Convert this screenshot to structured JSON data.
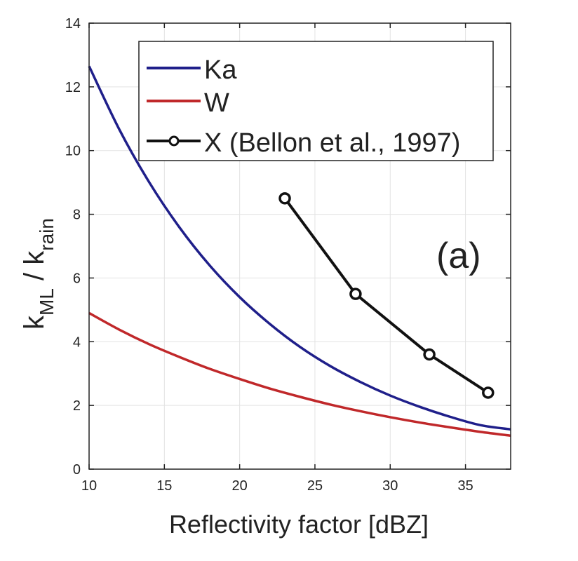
{
  "chart_data": {
    "type": "line",
    "title": "",
    "xlabel": "Reflectivity factor [dBZ]",
    "ylabel_main": "k",
    "ylabel_sub1": "ML",
    "ylabel_mid": " / k",
    "ylabel_sub2": "rain",
    "annotation": "(a)",
    "xlim": [
      10,
      38
    ],
    "ylim": [
      0,
      14
    ],
    "xticks": [
      10,
      15,
      20,
      25,
      30,
      35
    ],
    "yticks": [
      0,
      2,
      4,
      6,
      8,
      10,
      12,
      14
    ],
    "grid": true,
    "legend_placement": "top",
    "series": [
      {
        "name": "Ka",
        "color": "#1f1f8a",
        "marker": "none",
        "x": [
          10,
          12,
          14,
          16,
          18,
          20,
          22,
          24,
          26,
          28,
          30,
          32,
          34,
          36,
          38
        ],
        "y": [
          12.65,
          10.67,
          9.0,
          7.59,
          6.4,
          5.4,
          4.56,
          3.84,
          3.24,
          2.74,
          2.31,
          1.95,
          1.64,
          1.38,
          1.25
        ]
      },
      {
        "name": "W",
        "color": "#c0282a",
        "marker": "none",
        "x": [
          10,
          12,
          14,
          16,
          18,
          20,
          22,
          24,
          26,
          28,
          30,
          32,
          34,
          36,
          38
        ],
        "y": [
          4.9,
          4.38,
          3.92,
          3.52,
          3.15,
          2.83,
          2.53,
          2.27,
          2.03,
          1.82,
          1.63,
          1.46,
          1.31,
          1.17,
          1.05
        ]
      },
      {
        "name": "X (Bellon et al., 1997)",
        "color": "#111111",
        "marker": "circle",
        "x": [
          23,
          27.7,
          32.6,
          36.5
        ],
        "y": [
          8.5,
          5.5,
          3.6,
          2.4
        ]
      }
    ]
  }
}
